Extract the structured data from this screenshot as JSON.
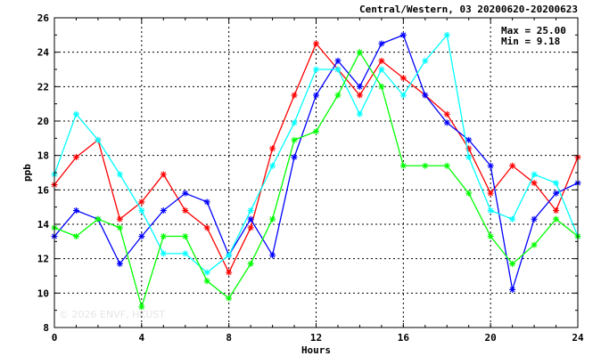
{
  "header": {
    "title": "Central/Western, 03 20200620-20200623",
    "max_label": "Max = 25.00",
    "min_label": "Min =  9.18"
  },
  "watermark": "© 2026  ENVF, HKUST",
  "chart_data": {
    "type": "line",
    "xlabel": "Hours",
    "ylabel": "ppb",
    "xlim": [
      0,
      24
    ],
    "ylim": [
      8,
      26
    ],
    "x_ticks": [
      0,
      4,
      8,
      12,
      16,
      20,
      24
    ],
    "y_ticks": [
      8,
      10,
      12,
      14,
      16,
      18,
      20,
      22,
      24,
      26
    ],
    "grid": true,
    "marker": "asterisk",
    "x": [
      0,
      1,
      2,
      3,
      4,
      5,
      6,
      7,
      8,
      9,
      10,
      11,
      12,
      13,
      14,
      15,
      16,
      17,
      18,
      19,
      20,
      21,
      22,
      23,
      24
    ],
    "series": [
      {
        "color": "#ff0000",
        "values": [
          16.3,
          17.9,
          18.9,
          14.3,
          15.3,
          16.9,
          14.8,
          13.8,
          11.2,
          13.8,
          18.4,
          21.5,
          24.5,
          23.0,
          21.5,
          23.5,
          22.5,
          21.5,
          20.4,
          18.4,
          15.8,
          17.4,
          16.4,
          14.8,
          17.9
        ]
      },
      {
        "color": "#0000ff",
        "values": [
          13.3,
          14.8,
          14.3,
          11.7,
          13.3,
          14.8,
          15.8,
          15.3,
          12.2,
          14.3,
          12.2,
          17.9,
          21.5,
          23.5,
          22.0,
          24.5,
          25.0,
          21.5,
          19.9,
          18.9,
          17.4,
          10.2,
          14.3,
          15.8,
          16.4
        ]
      },
      {
        "color": "#00ffff",
        "values": [
          16.9,
          20.4,
          18.9,
          16.9,
          14.8,
          12.3,
          12.3,
          11.2,
          12.2,
          14.8,
          17.4,
          19.9,
          23.0,
          23.0,
          20.4,
          23.0,
          21.5,
          23.5,
          25.0,
          17.9,
          14.8,
          14.3,
          16.9,
          16.4,
          13.3
        ]
      },
      {
        "color": "#00ff00",
        "values": [
          13.8,
          13.3,
          14.3,
          13.8,
          9.2,
          13.3,
          13.3,
          10.7,
          9.7,
          11.7,
          14.3,
          18.9,
          19.4,
          21.5,
          24.0,
          22.0,
          17.4,
          17.4,
          17.4,
          15.8,
          13.3,
          11.7,
          12.8,
          14.3,
          13.3
        ]
      }
    ]
  }
}
